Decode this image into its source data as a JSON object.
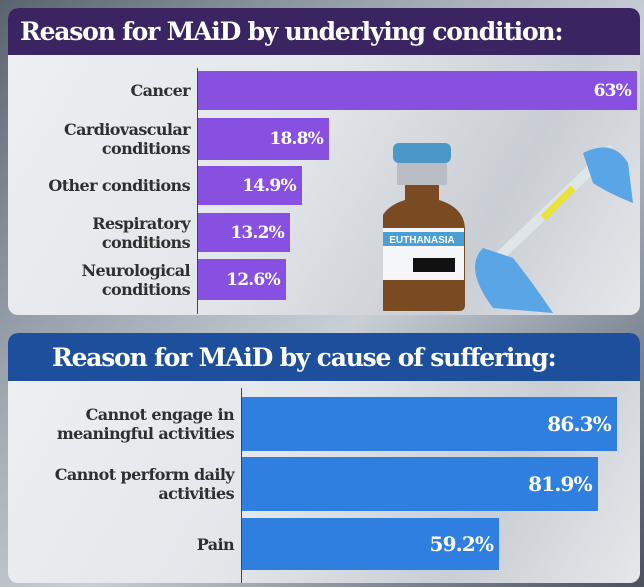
{
  "chart_data": [
    {
      "type": "bar",
      "orientation": "horizontal",
      "title": "Reason for MAiD by underlying condition:",
      "categories": [
        "Cancer",
        "Cardiovascular conditions",
        "Other conditions",
        "Respiratory conditions",
        "Neurological conditions"
      ],
      "label_lines": [
        [
          "Cancer"
        ],
        [
          "Cardiovascular",
          "conditions"
        ],
        [
          "Other conditions"
        ],
        [
          "Respiratory",
          "conditions"
        ],
        [
          "Neurological",
          "conditions"
        ]
      ],
      "values": [
        63,
        18.8,
        14.9,
        13.2,
        12.6
      ],
      "value_labels": [
        "63%",
        "18.8%",
        "14.9%",
        "13.2%",
        "12.6%"
      ],
      "xlim": [
        0,
        63
      ],
      "color": "#8750e0",
      "header_color": "#3b2462",
      "image_text": "EUTHANASIA"
    },
    {
      "type": "bar",
      "orientation": "horizontal",
      "title": "Reason for MAiD by cause of suffering:",
      "categories": [
        "Cannot engage in meaningful activities",
        "Cannot perform daily activities",
        "Pain"
      ],
      "label_lines": [
        [
          "Cannot engage in",
          "meaningful activities"
        ],
        [
          "Cannot perform daily",
          "activities"
        ],
        [
          "Pain"
        ]
      ],
      "values": [
        86.3,
        81.9,
        59.2
      ],
      "value_labels": [
        "86.3%",
        "81.9%",
        "59.2%"
      ],
      "xlim": [
        0,
        86.3
      ],
      "color": "#2e7fe0",
      "header_color": "#1d4f9c"
    }
  ]
}
